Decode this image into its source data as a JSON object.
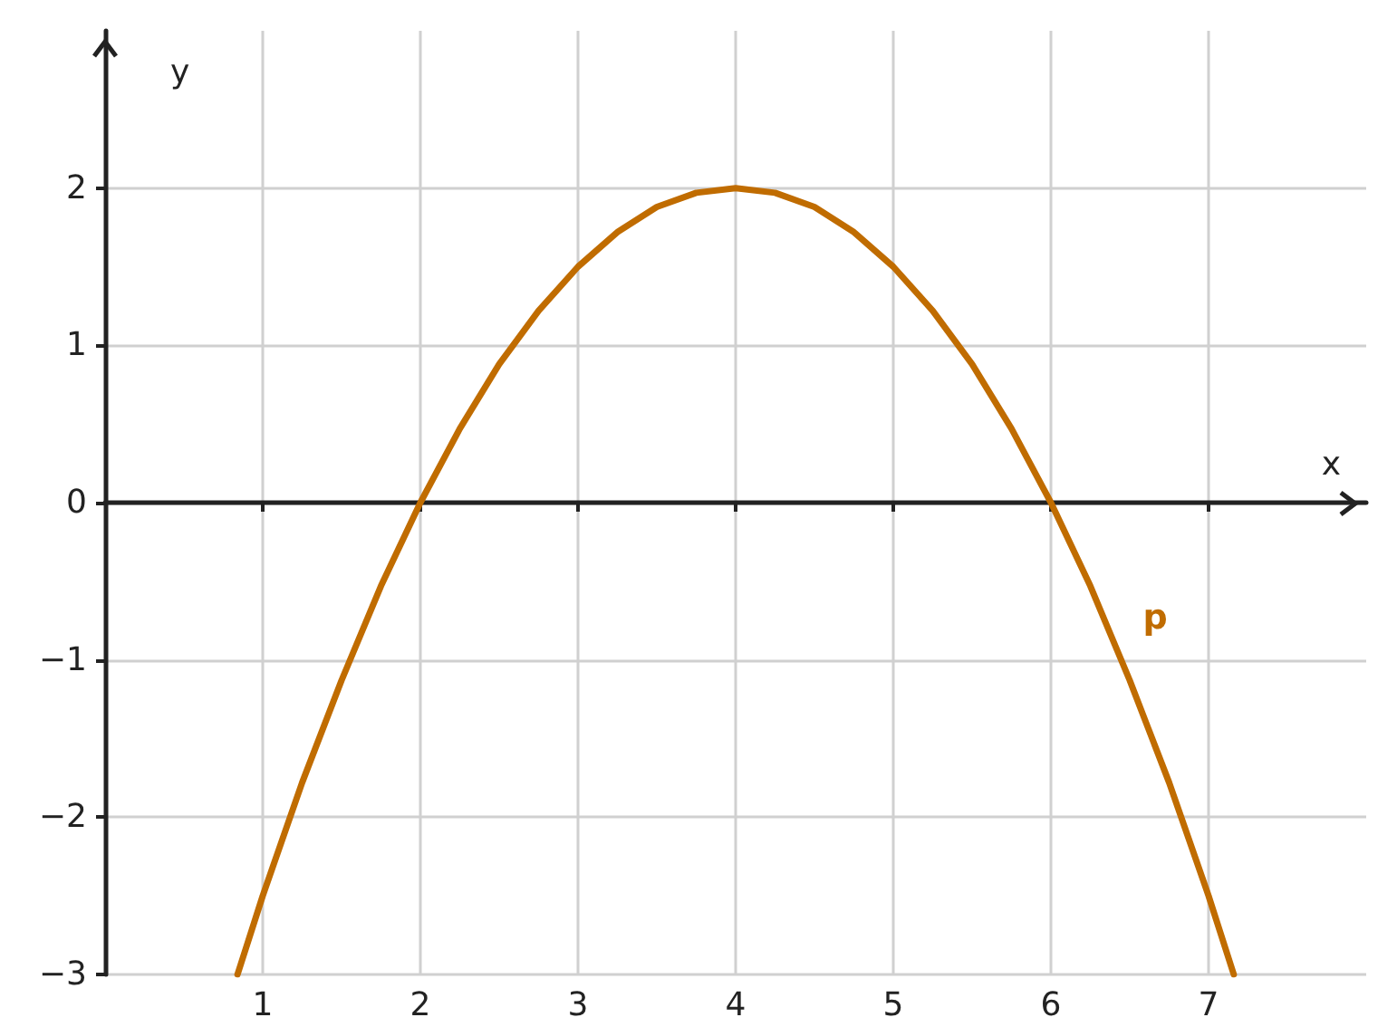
{
  "chart_data": {
    "type": "line",
    "xlabel": "x",
    "ylabel": "y",
    "xlim": [
      0,
      8
    ],
    "ylim": [
      -3,
      3
    ],
    "xticks": [
      1,
      2,
      3,
      4,
      5,
      6,
      7
    ],
    "yticks": [
      {
        "value": -3,
        "label": "−3"
      },
      {
        "value": -2,
        "label": "−2"
      },
      {
        "value": -1,
        "label": "−1"
      },
      0,
      1,
      2
    ],
    "grid": true,
    "marker": "none",
    "line_style": "solid",
    "legend": false,
    "series": [
      {
        "name": "p",
        "color": "#c06c00",
        "x": [
          0.84,
          1,
          1.25,
          1.5,
          1.75,
          2,
          2.25,
          2.5,
          2.75,
          3,
          3.25,
          3.5,
          3.75,
          4,
          4.25,
          4.5,
          4.75,
          5,
          5.25,
          5.5,
          5.75,
          6,
          6.25,
          6.5,
          6.75,
          7,
          7.16
        ],
        "values": [
          -3,
          -2.5,
          -1.78,
          -1.13,
          -0.53,
          0,
          0.47,
          0.88,
          1.22,
          1.5,
          1.72,
          1.88,
          1.97,
          2,
          1.97,
          1.88,
          1.72,
          1.5,
          1.22,
          0.88,
          0.47,
          0,
          -0.53,
          -1.13,
          -1.78,
          -2.5,
          -3
        ]
      }
    ]
  }
}
